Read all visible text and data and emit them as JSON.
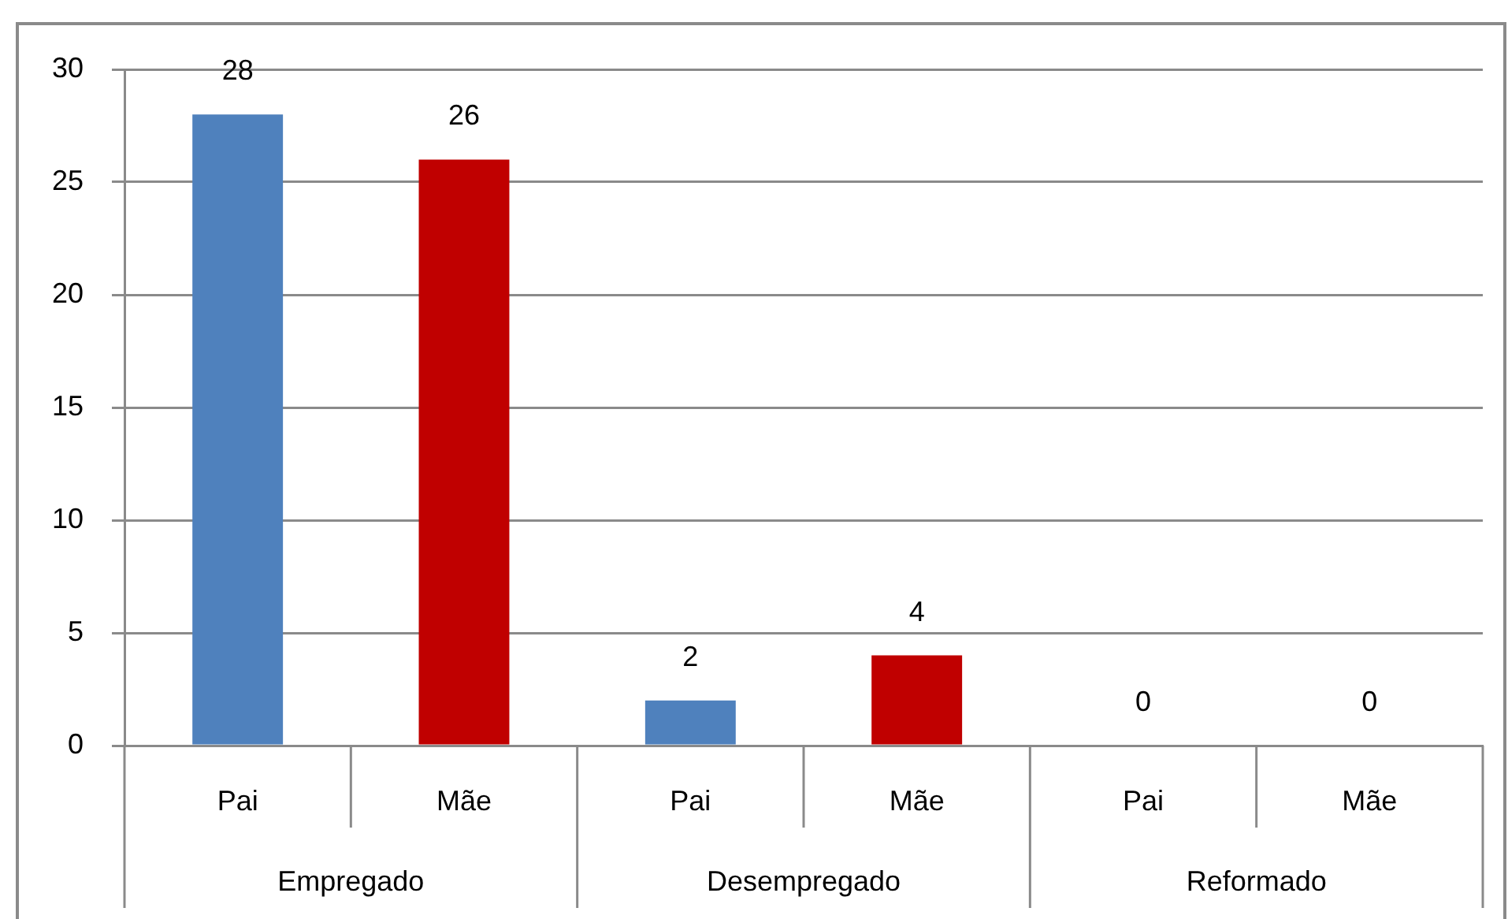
{
  "chart_data": {
    "type": "bar",
    "categories": [
      "Pai",
      "Mãe",
      "Pai",
      "Mãe",
      "Pai",
      "Mãe"
    ],
    "values": [
      28,
      26,
      2,
      4,
      0,
      0
    ],
    "colors": [
      "#4f81bd",
      "#c00000",
      "#4f81bd",
      "#c00000",
      "#4f81bd",
      "#c00000"
    ],
    "annotations": [
      "Empregado",
      "Desempregado",
      "Reformado"
    ],
    "ylim": [
      0,
      30
    ],
    "yticks": [
      0,
      5,
      10,
      15,
      20,
      25,
      30
    ],
    "grid": "y",
    "legend": false,
    "data_labels": true
  }
}
